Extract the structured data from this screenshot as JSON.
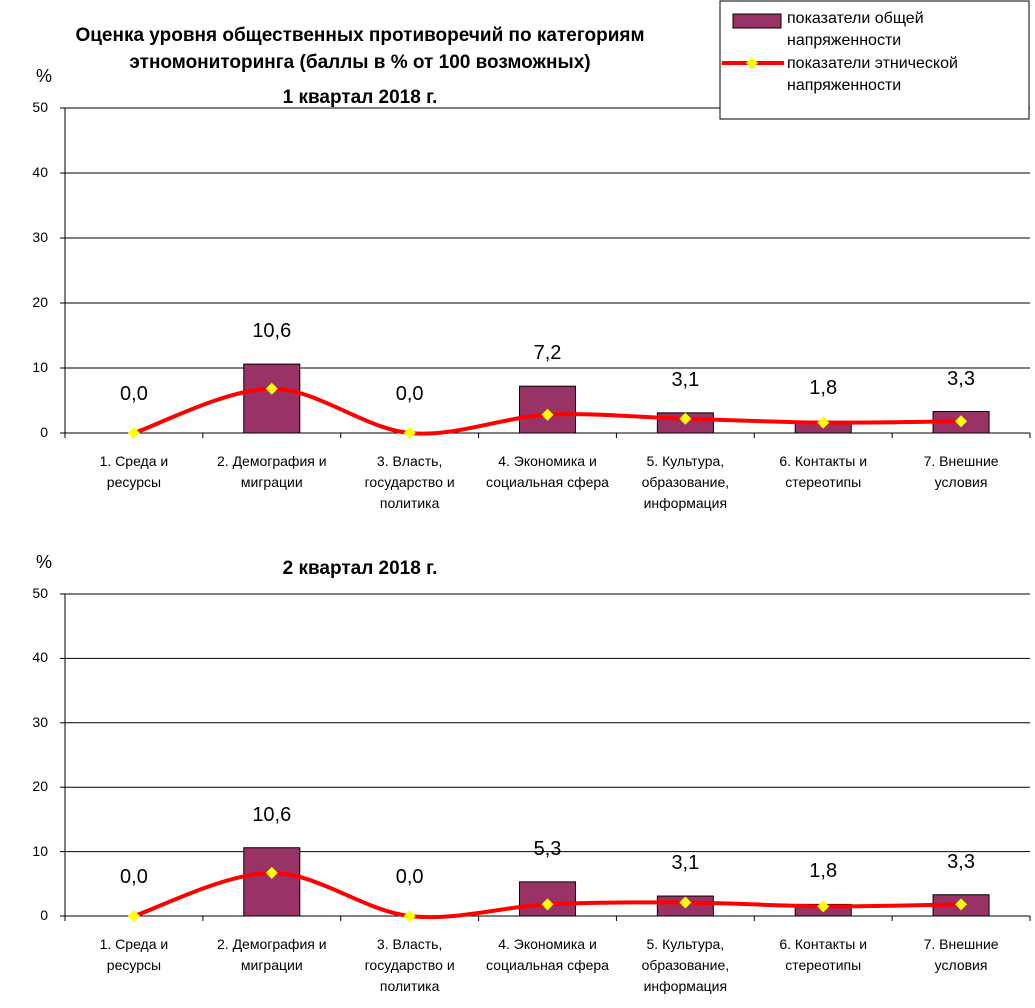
{
  "chart_data": [
    {
      "type": "bar_line",
      "title": "Оценка уровня общественных противоречий по категориям этномониторинга (баллы в % от 100 возможных)",
      "subtitle": "1 квартал 2018 г.",
      "ylabel": "%",
      "categories": [
        "1. Среда и ресурсы",
        "2. Демография и миграции",
        "3. Власть, государство и политика",
        "4. Экономика и социальная сфера",
        "5. Культура, образование, информация",
        "6. Контакты и стереотипы",
        "7. Внешние условия"
      ],
      "series": [
        {
          "name": "показатели общей напряженности",
          "type": "bar",
          "color": "#993366",
          "values": [
            0,
            10.6,
            0,
            7.2,
            3.1,
            1.8,
            3.3
          ],
          "value_labels": [
            "0,0",
            "10,6",
            "0,0",
            "7,2",
            "3,1",
            "1,8",
            "3,3"
          ]
        },
        {
          "name": "показатели этнической напряженности",
          "type": "line",
          "color": "#ff0000",
          "marker_color": "#ffff00",
          "values": [
            0,
            6.8,
            0,
            2.8,
            2.2,
            1.6,
            1.8
          ]
        }
      ],
      "ylim": [
        0,
        50
      ],
      "yticks": [
        0,
        10,
        20,
        30,
        40,
        50
      ],
      "grid": true,
      "legend": "top-right"
    },
    {
      "type": "bar_line",
      "subtitle": "2 квартал 2018 г.",
      "ylabel": "%",
      "categories": [
        "1. Среда и ресурсы",
        "2. Демография и миграции",
        "3. Власть, государство и политика",
        "4. Экономика и социальная сфера",
        "5. Культура, образование, информация",
        "6. Контакты и стереотипы",
        "7. Внешние условия"
      ],
      "series": [
        {
          "type": "bar",
          "color": "#993366",
          "values": [
            0,
            10.6,
            0,
            5.3,
            3.1,
            1.8,
            3.3
          ],
          "value_labels": [
            "0,0",
            "10,6",
            "0,0",
            "5,3",
            "3,1",
            "1,8",
            "3,3"
          ]
        },
        {
          "type": "line",
          "color": "#ff0000",
          "marker_color": "#ffff00",
          "values": [
            0,
            6.7,
            0,
            1.8,
            2.1,
            1.5,
            1.8
          ]
        }
      ],
      "ylim": [
        0,
        50
      ],
      "yticks": [
        0,
        10,
        20,
        30,
        40,
        50
      ],
      "grid": true
    }
  ]
}
